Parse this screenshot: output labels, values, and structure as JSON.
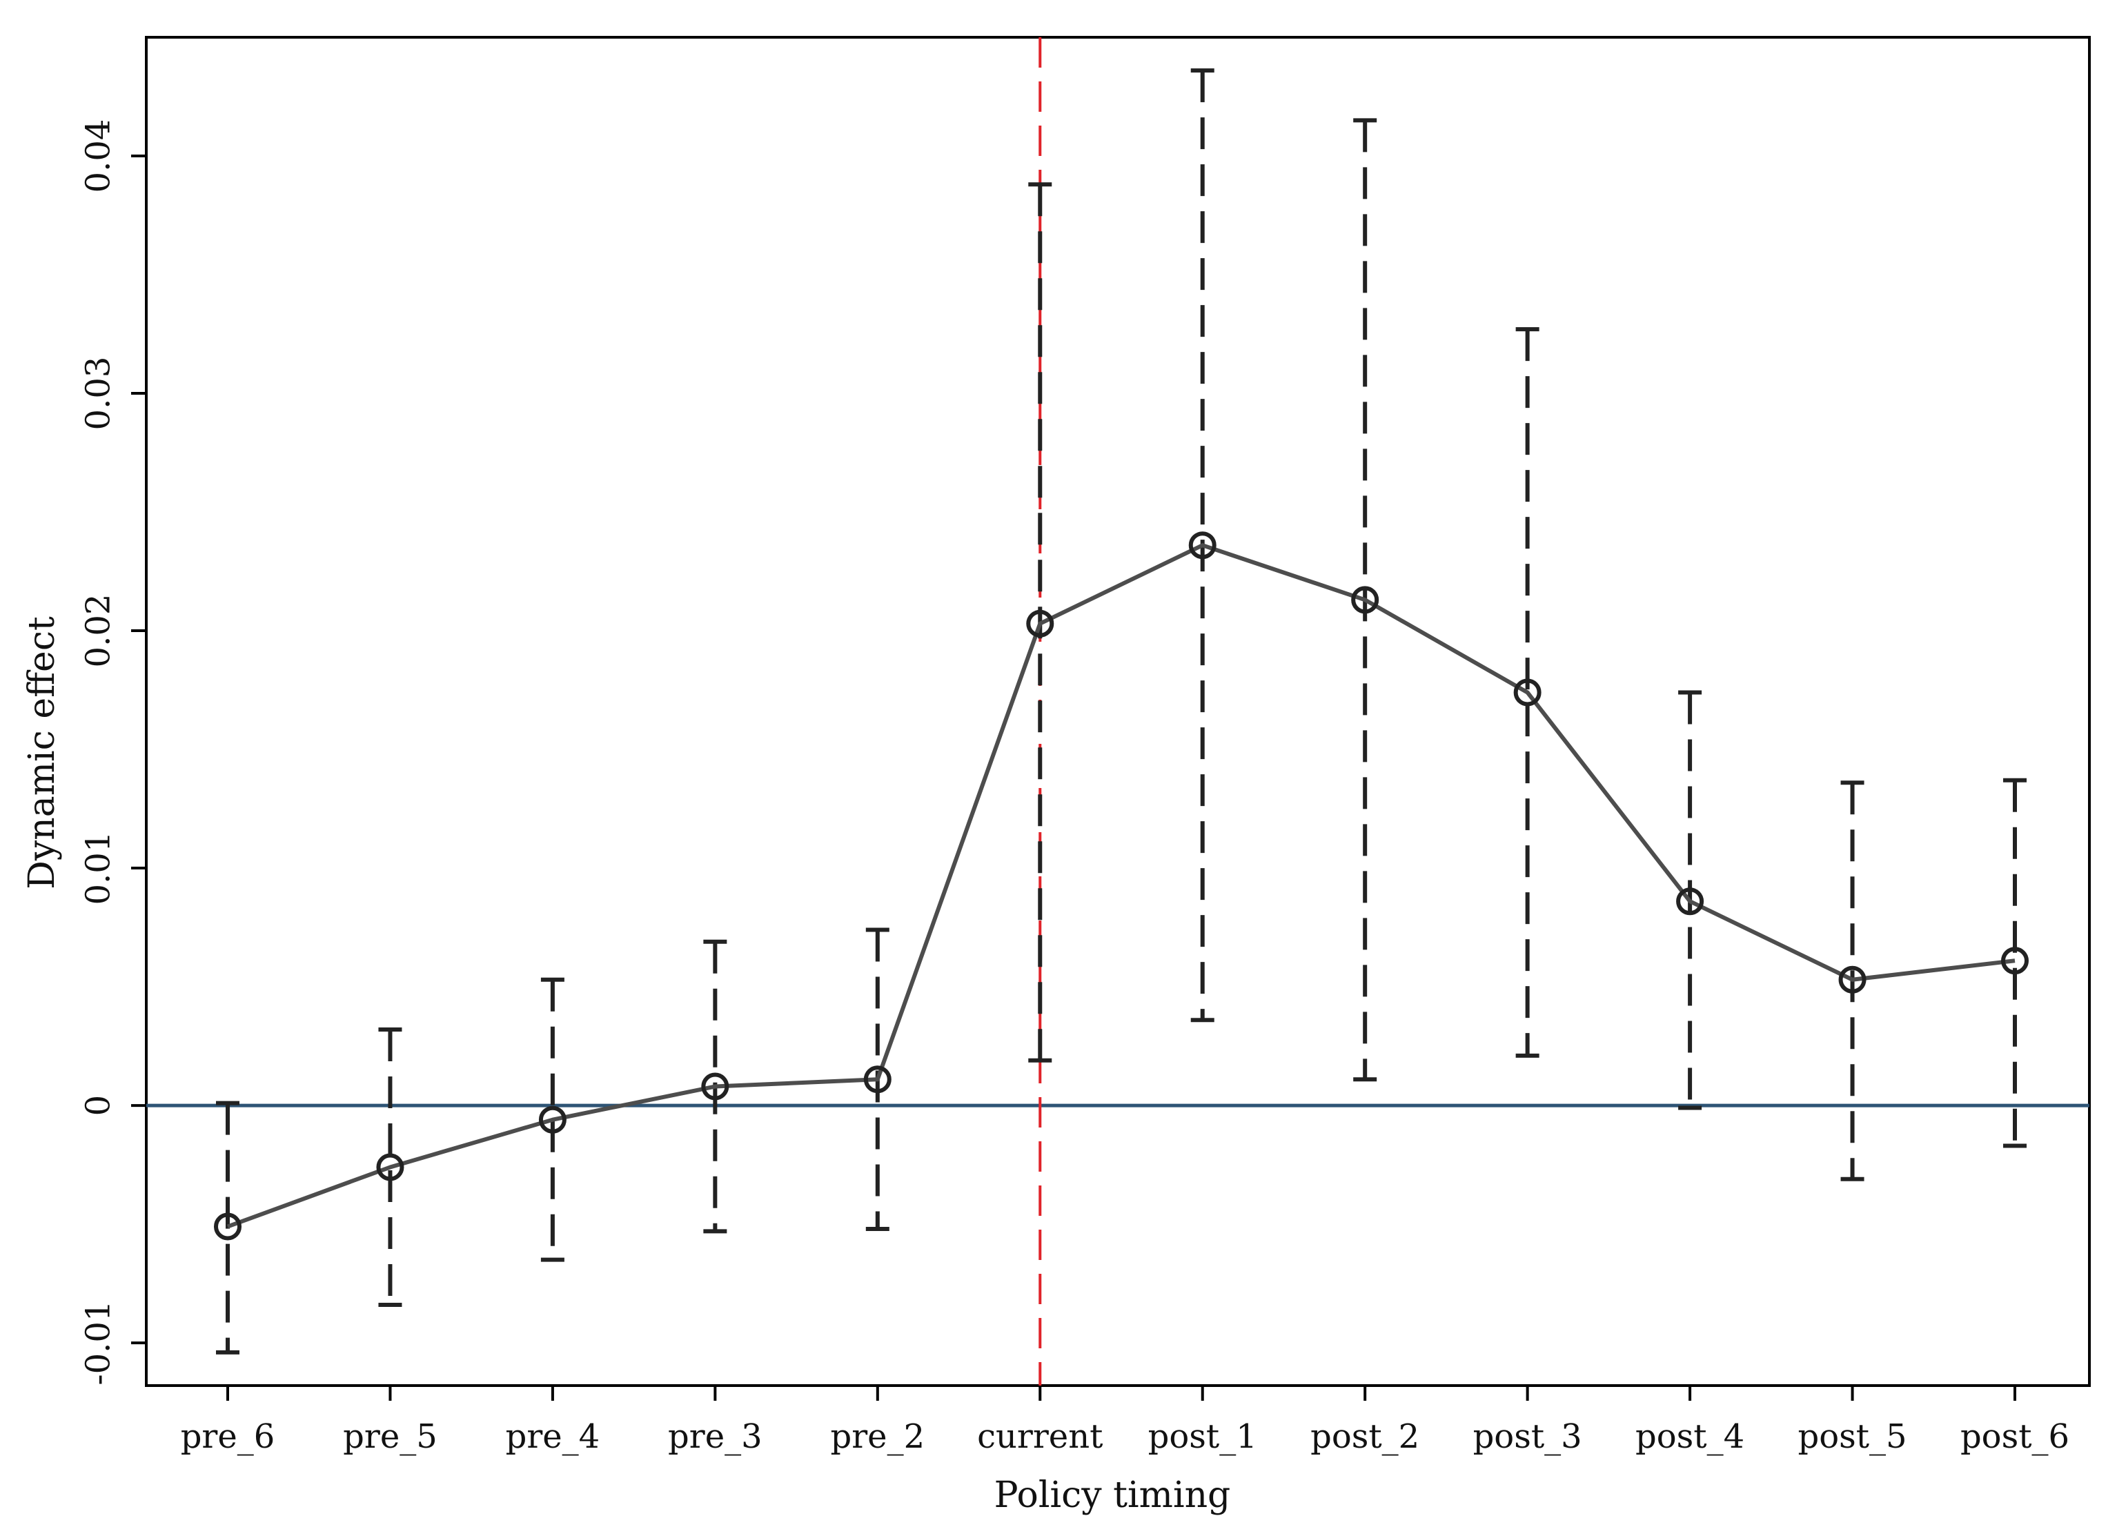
{
  "chart_data": {
    "type": "line",
    "title": "",
    "xlabel": "Policy timing",
    "ylabel": "Dynamic effect",
    "categories": [
      "pre_6",
      "pre_5",
      "pre_4",
      "pre_3",
      "pre_2",
      "current",
      "post_1",
      "post_2",
      "post_3",
      "post_4",
      "post_5",
      "post_6"
    ],
    "series": [
      {
        "values": [
          -0.0051,
          -0.0026,
          -0.0006,
          0.0008,
          0.0011,
          0.0203,
          0.0236,
          0.0213,
          0.0174,
          0.0086,
          0.0053,
          0.0061
        ],
        "ci_lower": [
          -0.0104,
          -0.0084,
          -0.0065,
          -0.0053,
          -0.0052,
          0.0019,
          0.0036,
          0.0011,
          0.0021,
          -0.0001,
          -0.0031,
          -0.0017
        ],
        "ci_upper": [
          0.0001,
          0.0032,
          0.0053,
          0.0069,
          0.0074,
          0.0388,
          0.0436,
          0.0415,
          0.0327,
          0.0174,
          0.0136,
          0.0137
        ]
      }
    ],
    "ylim": [
      -0.0118,
      0.045
    ],
    "yticks": [
      -0.01,
      0,
      0.01,
      0.02,
      0.03,
      0.04
    ],
    "ytick_labels": [
      "-0.01",
      "0",
      "0.01",
      "0.02",
      "0.03",
      "0.04"
    ],
    "reference_hline": 0,
    "reference_vline_category": "current",
    "colors": {
      "line": "#4d4d4d",
      "markers": "#222222",
      "ci": "#222222",
      "zero_line": "#2e5475",
      "policy_line": "#e0242a",
      "frame": "#000000"
    },
    "grid": false,
    "legend": "none"
  }
}
